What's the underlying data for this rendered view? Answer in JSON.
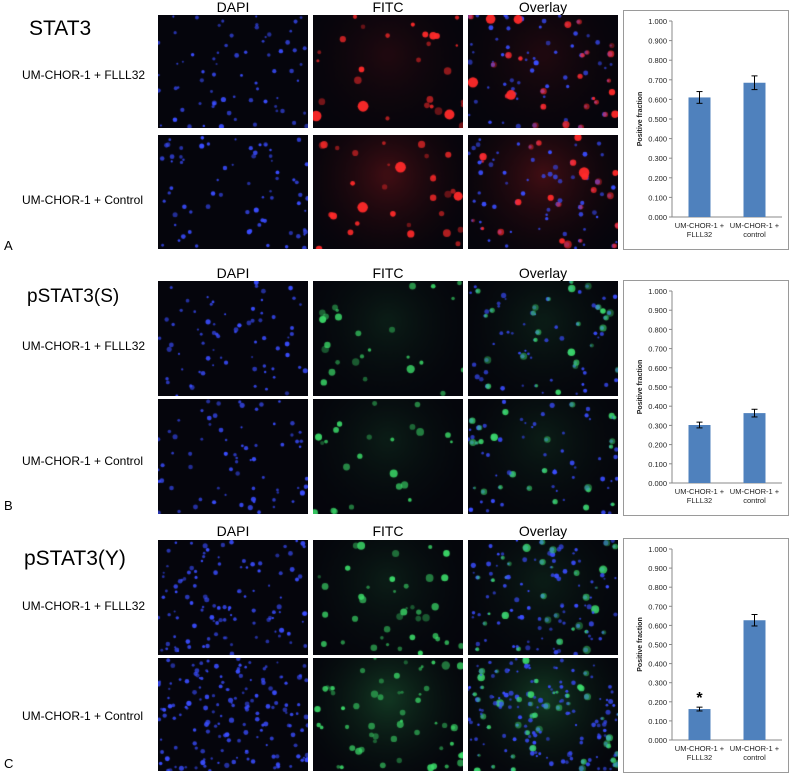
{
  "columns": [
    "DAPI",
    "FITC",
    "Overlay"
  ],
  "panels": [
    {
      "letter": "A",
      "target": "STAT3",
      "rows": [
        "UM-CHOR-1 + FLLL32",
        "UM-CHOR-1 + Control"
      ],
      "fitc_color": "#ff2a2a",
      "fitc_tint": "red",
      "marker": ""
    },
    {
      "letter": "B",
      "target": "pSTAT3(S)",
      "rows": [
        "UM-CHOR-1 + FLLL32",
        "UM-CHOR-1 + Control"
      ],
      "fitc_color": "#3cdc6a",
      "fitc_tint": "green",
      "marker": ""
    },
    {
      "letter": "C",
      "target": "pSTAT3(Y)",
      "rows": [
        "UM-CHOR-1 + FLLL32",
        "UM-CHOR-1 + Control"
      ],
      "fitc_color": "#3cdc6a",
      "fitc_tint": "green",
      "marker": "*"
    }
  ],
  "colors": {
    "bar": "#4f81bd",
    "dapi": "#3a4dff",
    "image_bg": "#05050c"
  },
  "chart_data": [
    {
      "type": "bar",
      "categories": [
        "UM-CHOR-1 + FLLL32",
        "UM-CHOR-1 + control"
      ],
      "values": [
        0.61,
        0.685
      ],
      "errors": [
        0.03,
        0.035
      ],
      "ylabel": "Positive fraction",
      "ylim": [
        0,
        1
      ],
      "yticks": [
        "0.000",
        "0.100",
        "0.200",
        "0.300",
        "0.400",
        "0.500",
        "0.600",
        "0.700",
        "0.800",
        "0.900",
        "1.000"
      ]
    },
    {
      "type": "bar",
      "categories": [
        "UM-CHOR-1 + FLLL32",
        "UM-CHOR-1 + control"
      ],
      "values": [
        0.302,
        0.364
      ],
      "errors": [
        0.015,
        0.02
      ],
      "ylabel": "Positive fraction",
      "ylim": [
        0,
        1
      ],
      "yticks": [
        "0.000",
        "0.100",
        "0.200",
        "0.300",
        "0.400",
        "0.500",
        "0.600",
        "0.700",
        "0.800",
        "0.900",
        "1.000"
      ]
    },
    {
      "type": "bar",
      "categories": [
        "UM-CHOR-1 + FLLL32",
        "UM-CHOR-1 + control"
      ],
      "values": [
        0.162,
        0.627
      ],
      "errors": [
        0.01,
        0.03
      ],
      "ylabel": "Positive fraction",
      "ylim": [
        0,
        1
      ],
      "yticks": [
        "0.000",
        "0.100",
        "0.200",
        "0.300",
        "0.400",
        "0.500",
        "0.600",
        "0.700",
        "0.800",
        "0.900",
        "1.000"
      ],
      "annotations": [
        "*"
      ]
    }
  ]
}
